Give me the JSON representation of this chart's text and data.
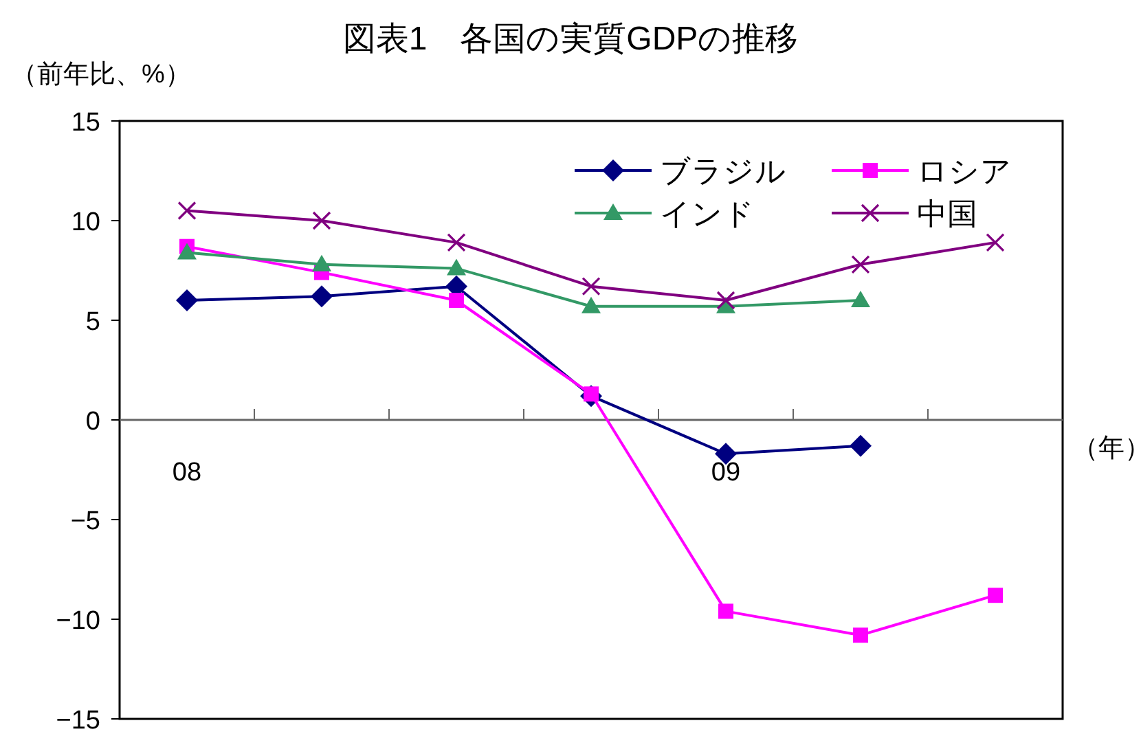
{
  "chart_data": {
    "type": "line",
    "title": "図表1　各国の実質GDPの推移",
    "ylabel": "（前年比、%）",
    "xlabel": "（年）",
    "categories": [
      "08",
      null,
      null,
      null,
      "09",
      null,
      null
    ],
    "ylim": [
      -15,
      15
    ],
    "yticks": [
      15,
      10,
      5,
      0,
      {
        "value": -5,
        "label": "−5"
      },
      {
        "value": -10,
        "label": "−10"
      },
      {
        "value": -15,
        "label": "−15"
      }
    ],
    "grid": false,
    "legend": "top right",
    "series": [
      {
        "name": "ブラジル",
        "color": "#000080",
        "marker": "diamond",
        "values": [
          6.0,
          6.2,
          6.7,
          1.2,
          -1.7,
          -1.3,
          null
        ]
      },
      {
        "name": "ロシア",
        "color": "#ff00ff",
        "marker": "square",
        "values": [
          8.7,
          7.4,
          6.0,
          1.3,
          -9.6,
          -10.8,
          -8.8
        ]
      },
      {
        "name": "インド",
        "color": "#339966",
        "marker": "triangle",
        "values": [
          8.4,
          7.8,
          7.6,
          5.7,
          5.7,
          6.0,
          null
        ]
      },
      {
        "name": "中国",
        "color": "#800080",
        "marker": "cross",
        "values": [
          10.5,
          10.0,
          8.9,
          6.7,
          6.0,
          7.8,
          8.9
        ]
      }
    ]
  }
}
